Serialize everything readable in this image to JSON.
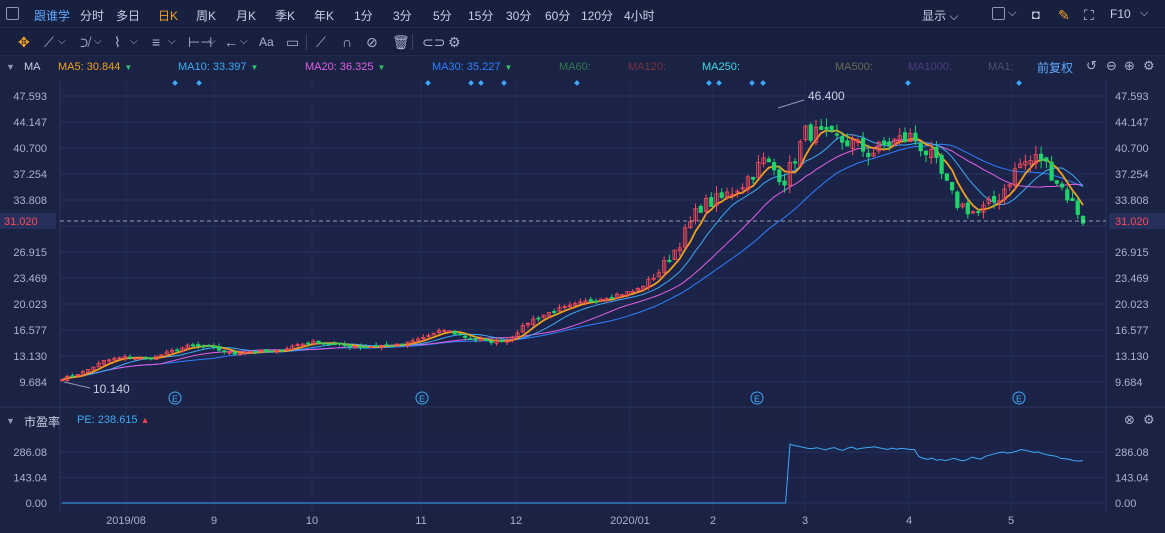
{
  "topbar": {
    "brand": "跟谁学",
    "timeframes": [
      {
        "label": "分时",
        "active": false
      },
      {
        "label": "多日",
        "active": false
      },
      {
        "label": "日K",
        "active": true
      },
      {
        "label": "周K",
        "active": false
      },
      {
        "label": "月K",
        "active": false
      },
      {
        "label": "季K",
        "active": false
      },
      {
        "label": "年K",
        "active": false
      },
      {
        "label": "1分",
        "active": false
      },
      {
        "label": "3分",
        "active": false
      },
      {
        "label": "5分",
        "active": false
      },
      {
        "label": "15分",
        "active": false
      },
      {
        "label": "30分",
        "active": false
      },
      {
        "label": "60分",
        "active": false
      },
      {
        "label": "120分",
        "active": false
      },
      {
        "label": "4小时",
        "active": false
      }
    ],
    "display_label": "显示",
    "f10_label": "F10"
  },
  "toolbar": {
    "tools": [
      "crosshair-icon",
      "line-icon",
      "channel-icon",
      "wave-icon",
      "measure-icon",
      "arrow-icon",
      "text-icon",
      "comment-icon",
      "pen-icon",
      "magnet-icon",
      "hide-icon",
      "trash-icon",
      "link-icon",
      "gear-icon"
    ],
    "text_tool_label": "Aa"
  },
  "ma_legend": {
    "indicator": "MA",
    "items": [
      {
        "label": "MA5: 30.844",
        "color": "#f0a020",
        "arrow": "▼"
      },
      {
        "label": "MA10: 33.397",
        "color": "#3fa9f5",
        "arrow": "▼"
      },
      {
        "label": "MA20: 36.325",
        "color": "#e060e0",
        "arrow": "▼"
      },
      {
        "label": "MA30: 35.227",
        "color": "#2f7fff",
        "arrow": "▼"
      },
      {
        "label": "MA60:",
        "color": "#2f7a4f",
        "arrow": ""
      },
      {
        "label": "MA120:",
        "color": "#7a3040",
        "arrow": ""
      },
      {
        "label": "MA250:",
        "color": "#40d8e8",
        "arrow": ""
      },
      {
        "label": "MA500:",
        "color": "#6a6a50",
        "arrow": ""
      },
      {
        "label": "MA1000:",
        "color": "#503a80",
        "arrow": ""
      },
      {
        "label": "MA1:",
        "color": "#4a5070",
        "arrow": ""
      }
    ],
    "adjust_label": "前复权"
  },
  "pe_legend": {
    "indicator": "市盈率",
    "item": {
      "label": "PE: 238.615",
      "color": "#3fa9f5",
      "arrow": "▲"
    }
  },
  "chart_data": [
    {
      "type": "candlestick",
      "title": "",
      "x": [
        "2019/08",
        "9",
        "10",
        "11",
        "12",
        "2020/01",
        "2",
        "3",
        "4",
        "5"
      ],
      "y_ticks": [
        9.684,
        13.13,
        16.577,
        20.023,
        23.469,
        26.915,
        30.362,
        33.808,
        37.254,
        40.7,
        44.147,
        47.593
      ],
      "ylim": [
        9.684,
        47.593
      ],
      "current_price": 31.02,
      "max_label": "46.400",
      "min_label": "10.140",
      "event_markers": [
        "E",
        "E",
        "E",
        "E"
      ],
      "trend": [
        10.1,
        11.0,
        12.5,
        13.0,
        12.7,
        13.6,
        14.5,
        14.3,
        13.4,
        13.8,
        13.6,
        14.6,
        15.0,
        14.6,
        14.3,
        14.5,
        14.6,
        15.6,
        16.6,
        15.6,
        15.0,
        15.3,
        17.8,
        19.0,
        19.8,
        20.6,
        21.2,
        21.8,
        24.0,
        28.0,
        33.0,
        34.0,
        36.0,
        39.0,
        36.5,
        43.0,
        42.0,
        41.5,
        40.0,
        41.5,
        42.2,
        39.0,
        33.5,
        32.0,
        34.0,
        38.5,
        39.5,
        35.5,
        31.2
      ],
      "ma": {
        "MA5": 30.844,
        "MA10": 33.397,
        "MA20": 36.325,
        "MA30": 35.227
      }
    },
    {
      "type": "line",
      "title": "",
      "name": "PE",
      "y_ticks": [
        0.0,
        143.04,
        286.08
      ],
      "ylim": [
        0,
        300
      ],
      "values": [
        0,
        0,
        0,
        0,
        0,
        0,
        0,
        0,
        0,
        0,
        0,
        0,
        0,
        0,
        0,
        0,
        0,
        0,
        0,
        0,
        0,
        0,
        0,
        0,
        0,
        0,
        0,
        0,
        0,
        0,
        0,
        0,
        0,
        0,
        0,
        0,
        0,
        0,
        0,
        0,
        0,
        0,
        0,
        0,
        0,
        0,
        0,
        0,
        0,
        0,
        0,
        0,
        0,
        0,
        0,
        0,
        0,
        0,
        0,
        0,
        0,
        0,
        0,
        0,
        0,
        0,
        0,
        0,
        0,
        0,
        0,
        0,
        0,
        0,
        0,
        0,
        0,
        0,
        0,
        0,
        0,
        0,
        0,
        0,
        0,
        0,
        0,
        0,
        0,
        0,
        0,
        0,
        0,
        0,
        0,
        0,
        0,
        0,
        0,
        0,
        0,
        0,
        0,
        0,
        0,
        0,
        0,
        0,
        0,
        0,
        0,
        0,
        0,
        0,
        0,
        0,
        0,
        0,
        0,
        0,
        0,
        0,
        0,
        0,
        0,
        0,
        0,
        0,
        0,
        0,
        0,
        0,
        0,
        0,
        0,
        0,
        0,
        0,
        0,
        0,
        0,
        0,
        0,
        0,
        0,
        0,
        0,
        0,
        0,
        0,
        0,
        0,
        0,
        0,
        0,
        0,
        0,
        0,
        0,
        0,
        0,
        0,
        0,
        0,
        330,
        322,
        318,
        312,
        306,
        305,
        310,
        304,
        298,
        306,
        311,
        300,
        296,
        308,
        314,
        302,
        306,
        310,
        312,
        316,
        310,
        305,
        300,
        308,
        302,
        306,
        304,
        300,
        300,
        260,
        250,
        245,
        252,
        240,
        244,
        238,
        245,
        250,
        242,
        236,
        244,
        258,
        250,
        246,
        262,
        268,
        276,
        282,
        286,
        280,
        284,
        290,
        300,
        296,
        290,
        284,
        286,
        276,
        270,
        266,
        262,
        250,
        248,
        244,
        238,
        235,
        238
      ]
    }
  ]
}
